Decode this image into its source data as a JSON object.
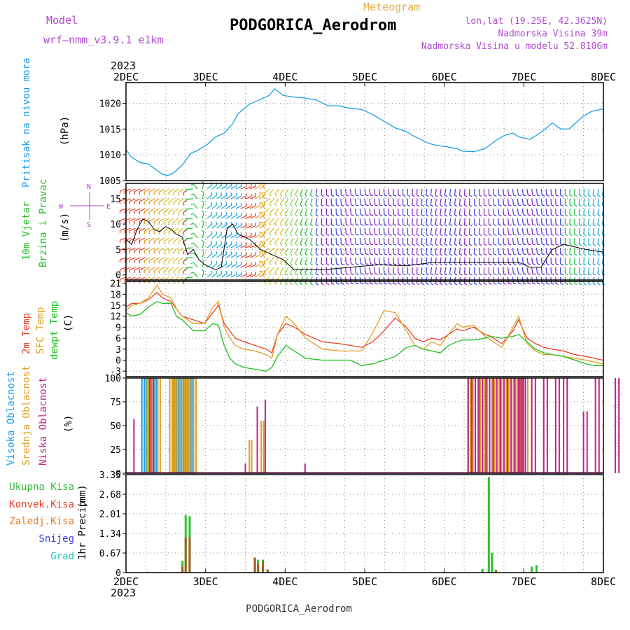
{
  "header": {
    "model_label": "Model",
    "model_name": "wrf–nmm_v3.9.1  e1km",
    "chart_type_label": "Meteogram",
    "station_title": "PODGORICA_Aerodrom",
    "lonlat": "lon,lat (19.25E, 42.3625N)",
    "elevation": "Nadmorska Visina 39m",
    "model_elevation": "Nadmorska Visina u modelu 52.8106m",
    "footer_station": "PODGORICA_Aerodrom",
    "credit": "made by Angel"
  },
  "colors": {
    "pressure": "#1ba0e8",
    "wind_speed": "#000000",
    "wind_gust_marker": "#e8402a",
    "temp_2m": "#e8402a",
    "temp_sfc": "#e0a020",
    "dewpoint": "#20c020",
    "cloud_high": "#1ba0e8",
    "cloud_mid": "#e0a020",
    "cloud_low": "#c0208a",
    "precip_total": "#2ec02e",
    "precip_conv": "#e8402a",
    "precip_frozen": "#e87a20",
    "precip_snow": "#4040e0",
    "precip_hail": "#20c0c0",
    "grid": "#888888",
    "label_purple": "#b04ad0"
  },
  "time_axis": {
    "year": "2023",
    "ticks": [
      "2DEC",
      "3DEC",
      "4DEC",
      "5DEC",
      "6DEC",
      "7DEC",
      "8DEC"
    ]
  },
  "chart_data": [
    {
      "type": "line",
      "panel": "pressure",
      "ylabel_1": "Pritisak na nivou mora",
      "ylabel_2": "(hPa)",
      "ylim": [
        1005,
        1024
      ],
      "yticks": [
        "1005",
        "1010",
        "1015",
        "1020"
      ],
      "ytick_values": [
        1005,
        1010,
        1015,
        1020
      ],
      "grid": true,
      "series": [
        {
          "x_days": [
            0,
            0.1,
            0.25,
            0.4,
            0.55,
            0.65,
            0.75,
            0.85,
            1.0,
            1.15,
            1.3,
            1.45,
            1.6,
            1.75,
            1.9,
            2.0,
            2.2,
            2.35,
            2.55,
            2.65,
            2.8,
            3.0,
            3.2,
            3.4,
            3.6,
            3.8,
            4.0,
            4.2,
            4.4,
            4.6,
            4.8,
            5.0,
            5.1,
            5.25,
            5.4,
            5.55,
            5.7,
            5.9,
            6.0,
            6.2,
            6.4,
            6.6,
            6.75,
            6.9,
            7.0,
            7.2,
            7.35,
            7.5,
            7.6,
            7.75,
            7.9,
            8.0,
            8.15,
            8.3,
            8.5
          ],
          "values": [
            1011,
            1009.5,
            1008.5,
            1008.2,
            1007,
            1006.2,
            1006,
            1006.5,
            1008,
            1010.2,
            1011,
            1012,
            1013.5,
            1014.2,
            1016,
            1018,
            1019.8,
            1020.5,
            1021.5,
            1022.8,
            1021.5,
            1021.2,
            1021,
            1020.6,
            1019.5,
            1019.5,
            1019,
            1018.8,
            1017.8,
            1016.5,
            1015.2,
            1014.5,
            1013.8,
            1013,
            1012.2,
            1011.8,
            1011.6,
            1011.2,
            1010.7,
            1010.6,
            1011.2,
            1012.8,
            1013.8,
            1014.2,
            1013.5,
            1013,
            1014,
            1015.2,
            1016.2,
            1015,
            1015,
            1016,
            1017.5,
            1018.4,
            1018.9
          ]
        }
      ]
    },
    {
      "type": "line",
      "panel": "wind",
      "ylabel_1": "10m Vjetar",
      "ylabel_2": "Brzina i Pravac",
      "ylabel_3": "(m/s)",
      "compass": {
        "n": "N",
        "e": "E",
        "w": "W",
        "s": "S"
      },
      "ylim": [
        -1,
        18
      ],
      "yticks": [
        "0",
        "5",
        "10",
        "15"
      ],
      "ytick_values": [
        0,
        5,
        10,
        15
      ],
      "grid": true,
      "series": [
        {
          "name": "speed",
          "x_days": [
            0,
            0.1,
            0.2,
            0.3,
            0.4,
            0.5,
            0.6,
            0.7,
            0.8,
            0.9,
            1.0,
            1.1,
            1.2,
            1.3,
            1.4,
            1.5,
            1.6,
            1.7,
            1.8,
            1.9,
            2.0,
            2.2,
            2.4,
            2.6,
            2.8,
            3.0,
            3.5,
            4.0,
            4.5,
            5.0,
            5.5,
            6.0,
            6.5,
            6.8,
            7.0,
            7.2,
            7.4,
            7.6,
            7.8,
            8.0,
            8.2,
            8.5
          ],
          "values": [
            7,
            6,
            9,
            11,
            10.5,
            9,
            8.5,
            9.5,
            9,
            8,
            7.5,
            4,
            5,
            3,
            2,
            1.5,
            1,
            1.5,
            9,
            10,
            8,
            7,
            5,
            4,
            3,
            1,
            1,
            1.5,
            2,
            1.8,
            2.5,
            2.5,
            2.5,
            2.5,
            2.5,
            1.5,
            1.5,
            5,
            6,
            5.5,
            5,
            4.5
          ]
        }
      ],
      "wind_barbs": {
        "x_days": [
          0.0,
          0.8,
          1.0,
          1.3,
          1.5,
          1.7,
          1.8,
          2.0,
          2.3,
          2.5,
          3.0,
          3.5,
          4.0,
          4.5,
          5.0,
          5.5,
          6.0,
          6.3,
          6.6,
          7.0,
          7.3,
          7.6,
          8.0,
          8.5
        ],
        "direction_deg": [
          200,
          220,
          40,
          30,
          20,
          40,
          220,
          240,
          250,
          270,
          280,
          270,
          260,
          270,
          280,
          270,
          260,
          260,
          270,
          280,
          40,
          60,
          80,
          90
        ],
        "palette": [
          "#e8402a",
          "#e0a020",
          "#d4c020",
          "#80d040",
          "#20c040",
          "#20b0c0",
          "#1ba0e8",
          "#4040e0",
          "#8020c0"
        ]
      }
    },
    {
      "type": "line",
      "panel": "temperature",
      "ylabel_1": "2m Temp",
      "ylabel_2": "SFC Temp",
      "ylabel_3": "dewpt Temp",
      "ylabel_4": "(C)",
      "ylim": [
        -4.5,
        21.5
      ],
      "yticks": [
        "-3",
        "0",
        "3",
        "6",
        "9",
        "12",
        "15",
        "18",
        "21"
      ],
      "ytick_values": [
        -3,
        0,
        3,
        6,
        9,
        12,
        15,
        18,
        21
      ],
      "grid": true,
      "x_days": [
        0,
        0.1,
        0.25,
        0.4,
        0.55,
        0.65,
        0.8,
        0.9,
        1.0,
        1.2,
        1.4,
        1.55,
        1.65,
        1.75,
        1.85,
        1.95,
        2.1,
        2.3,
        2.5,
        2.6,
        2.7,
        2.85,
        3.0,
        3.2,
        3.5,
        3.8,
        4.0,
        4.2,
        4.4,
        4.6,
        4.8,
        5.0,
        5.15,
        5.3,
        5.45,
        5.6,
        5.75,
        5.9,
        6.0,
        6.2,
        6.4,
        6.5,
        6.7,
        6.9,
        7.0,
        7.15,
        7.3,
        7.45,
        7.6,
        7.8,
        8.0,
        8.2,
        8.35,
        8.5
      ],
      "series": [
        {
          "name": "2m",
          "values": [
            14.5,
            15.5,
            15.5,
            16.5,
            18.5,
            17,
            16,
            14,
            12,
            11,
            10,
            13,
            15,
            10,
            8,
            6,
            5,
            4,
            3,
            2,
            7,
            10,
            9,
            7,
            5,
            4.5,
            4,
            3.5,
            5,
            8,
            11.5,
            9,
            6,
            5,
            6,
            5.5,
            7,
            8.5,
            8,
            9,
            7,
            6.5,
            4.5,
            8,
            11,
            6,
            4.5,
            3.5,
            3,
            2.5,
            1.5,
            1,
            0.5,
            0
          ],
          "stroke_key": "temp_2m"
        },
        {
          "name": "SFC",
          "values": [
            13.5,
            15,
            15.5,
            17,
            20.5,
            18,
            17,
            14,
            12,
            10,
            10,
            14.5,
            16,
            9,
            6,
            4,
            3,
            2.5,
            1.5,
            0.5,
            7,
            12,
            10,
            6,
            3,
            2.5,
            2.5,
            2.5,
            7.5,
            13.5,
            13,
            8,
            4,
            3,
            5,
            4,
            7,
            10,
            9,
            9.5,
            6.5,
            5.5,
            3.5,
            9,
            12,
            4.5,
            2.5,
            1.5,
            1.5,
            1,
            0.5,
            0,
            -0.5,
            -1
          ],
          "stroke_key": "temp_sfc"
        },
        {
          "name": "dewpt",
          "values": [
            13,
            12,
            12.5,
            14.5,
            16,
            15.5,
            15.5,
            12,
            11,
            8,
            8,
            10,
            9.5,
            4,
            0.5,
            -1,
            -2,
            -2.5,
            -3,
            -2,
            1,
            4,
            2.5,
            0.5,
            0,
            0,
            0,
            -1.5,
            -1,
            0,
            1,
            3.5,
            4,
            3,
            2.5,
            2,
            4,
            5,
            5.5,
            5.5,
            6,
            6.5,
            6,
            6.5,
            7,
            5,
            3,
            2,
            1.5,
            1,
            0,
            -1,
            -1.5,
            -1.5
          ],
          "stroke_key": "dewpoint"
        }
      ]
    },
    {
      "type": "bar",
      "panel": "clouds",
      "ylabel_1": "Visoka Oblacnost",
      "ylabel_2": "Srednja Oblacnost",
      "ylabel_3": "Niska Oblacnost",
      "ylabel_4": "(%)",
      "ylim": [
        0,
        100
      ],
      "yticks": [
        "0",
        "25",
        "50",
        "75",
        "100"
      ],
      "ytick_values": [
        0,
        25,
        50,
        75,
        100
      ],
      "grid": true,
      "bars_high": {
        "start": [
          0.2,
          0.6,
          2.95,
          4.3
        ],
        "end": [
          0.4,
          0.85,
          3.05,
          5.05
        ],
        "value": [
          100,
          100,
          0,
          100
        ]
      },
      "bars_mid": {
        "start": [
          0.25,
          0.55,
          1.55,
          1.7,
          2.95,
          4.3
        ],
        "end": [
          0.45,
          0.9,
          1.6,
          1.75,
          3.05,
          5.05
        ],
        "value": [
          100,
          100,
          35,
          55,
          0,
          100
        ]
      },
      "bars_low": {
        "start": [
          0.1,
          0.3,
          1.5,
          1.65,
          1.75,
          2.25,
          4.3,
          4.95,
          5.1,
          5.25,
          5.4,
          5.5,
          5.75,
          5.9,
          6.15,
          6.35,
          6.55,
          6.65,
          6.8
        ],
        "end": [
          0.12,
          0.35,
          1.52,
          1.68,
          1.78,
          2.27,
          5.05,
          5.0,
          5.15,
          5.3,
          5.45,
          5.55,
          5.8,
          5.95,
          6.2,
          6.4,
          6.6,
          6.7,
          6.85
        ],
        "value": [
          57,
          100,
          10,
          70,
          77,
          10,
          100,
          100,
          100,
          100,
          100,
          100,
          65,
          100,
          100,
          30,
          100,
          100,
          100
        ]
      }
    },
    {
      "type": "bar",
      "panel": "precip",
      "ylabel_1": "1hr Precip",
      "ylabel_2": "(mm)",
      "legend": [
        "Ukupna Kisa",
        "Konvek.Kisa",
        "Zaledj.Kisa",
        "Snijeg",
        "Grad"
      ],
      "ylim": [
        0,
        3.35
      ],
      "yticks": [
        "0",
        "0.67",
        "1.34",
        "2.01",
        "2.68",
        "3.35"
      ],
      "ytick_values": [
        0,
        0.67,
        1.34,
        2.01,
        2.68,
        3.35
      ],
      "grid": true,
      "x_days": [
        0.27,
        0.43,
        0.71,
        0.75,
        0.8,
        1.62,
        1.66,
        1.72,
        1.78,
        4.3,
        4.48,
        4.56,
        4.6,
        4.65,
        5.1,
        5.16
      ],
      "total": [
        0.03,
        0.02,
        0.4,
        1.97,
        1.93,
        0.51,
        0.44,
        0.44,
        0.11,
        0.0,
        0.12,
        3.27,
        0.68,
        0.09,
        0.2,
        0.25
      ],
      "convective": [
        0.0,
        0.0,
        0.2,
        1.2,
        1.2,
        0.51,
        0.3,
        0.4,
        0.1,
        0.0,
        0.0,
        0.0,
        0.0,
        0.09,
        0.0,
        0.0
      ]
    }
  ]
}
